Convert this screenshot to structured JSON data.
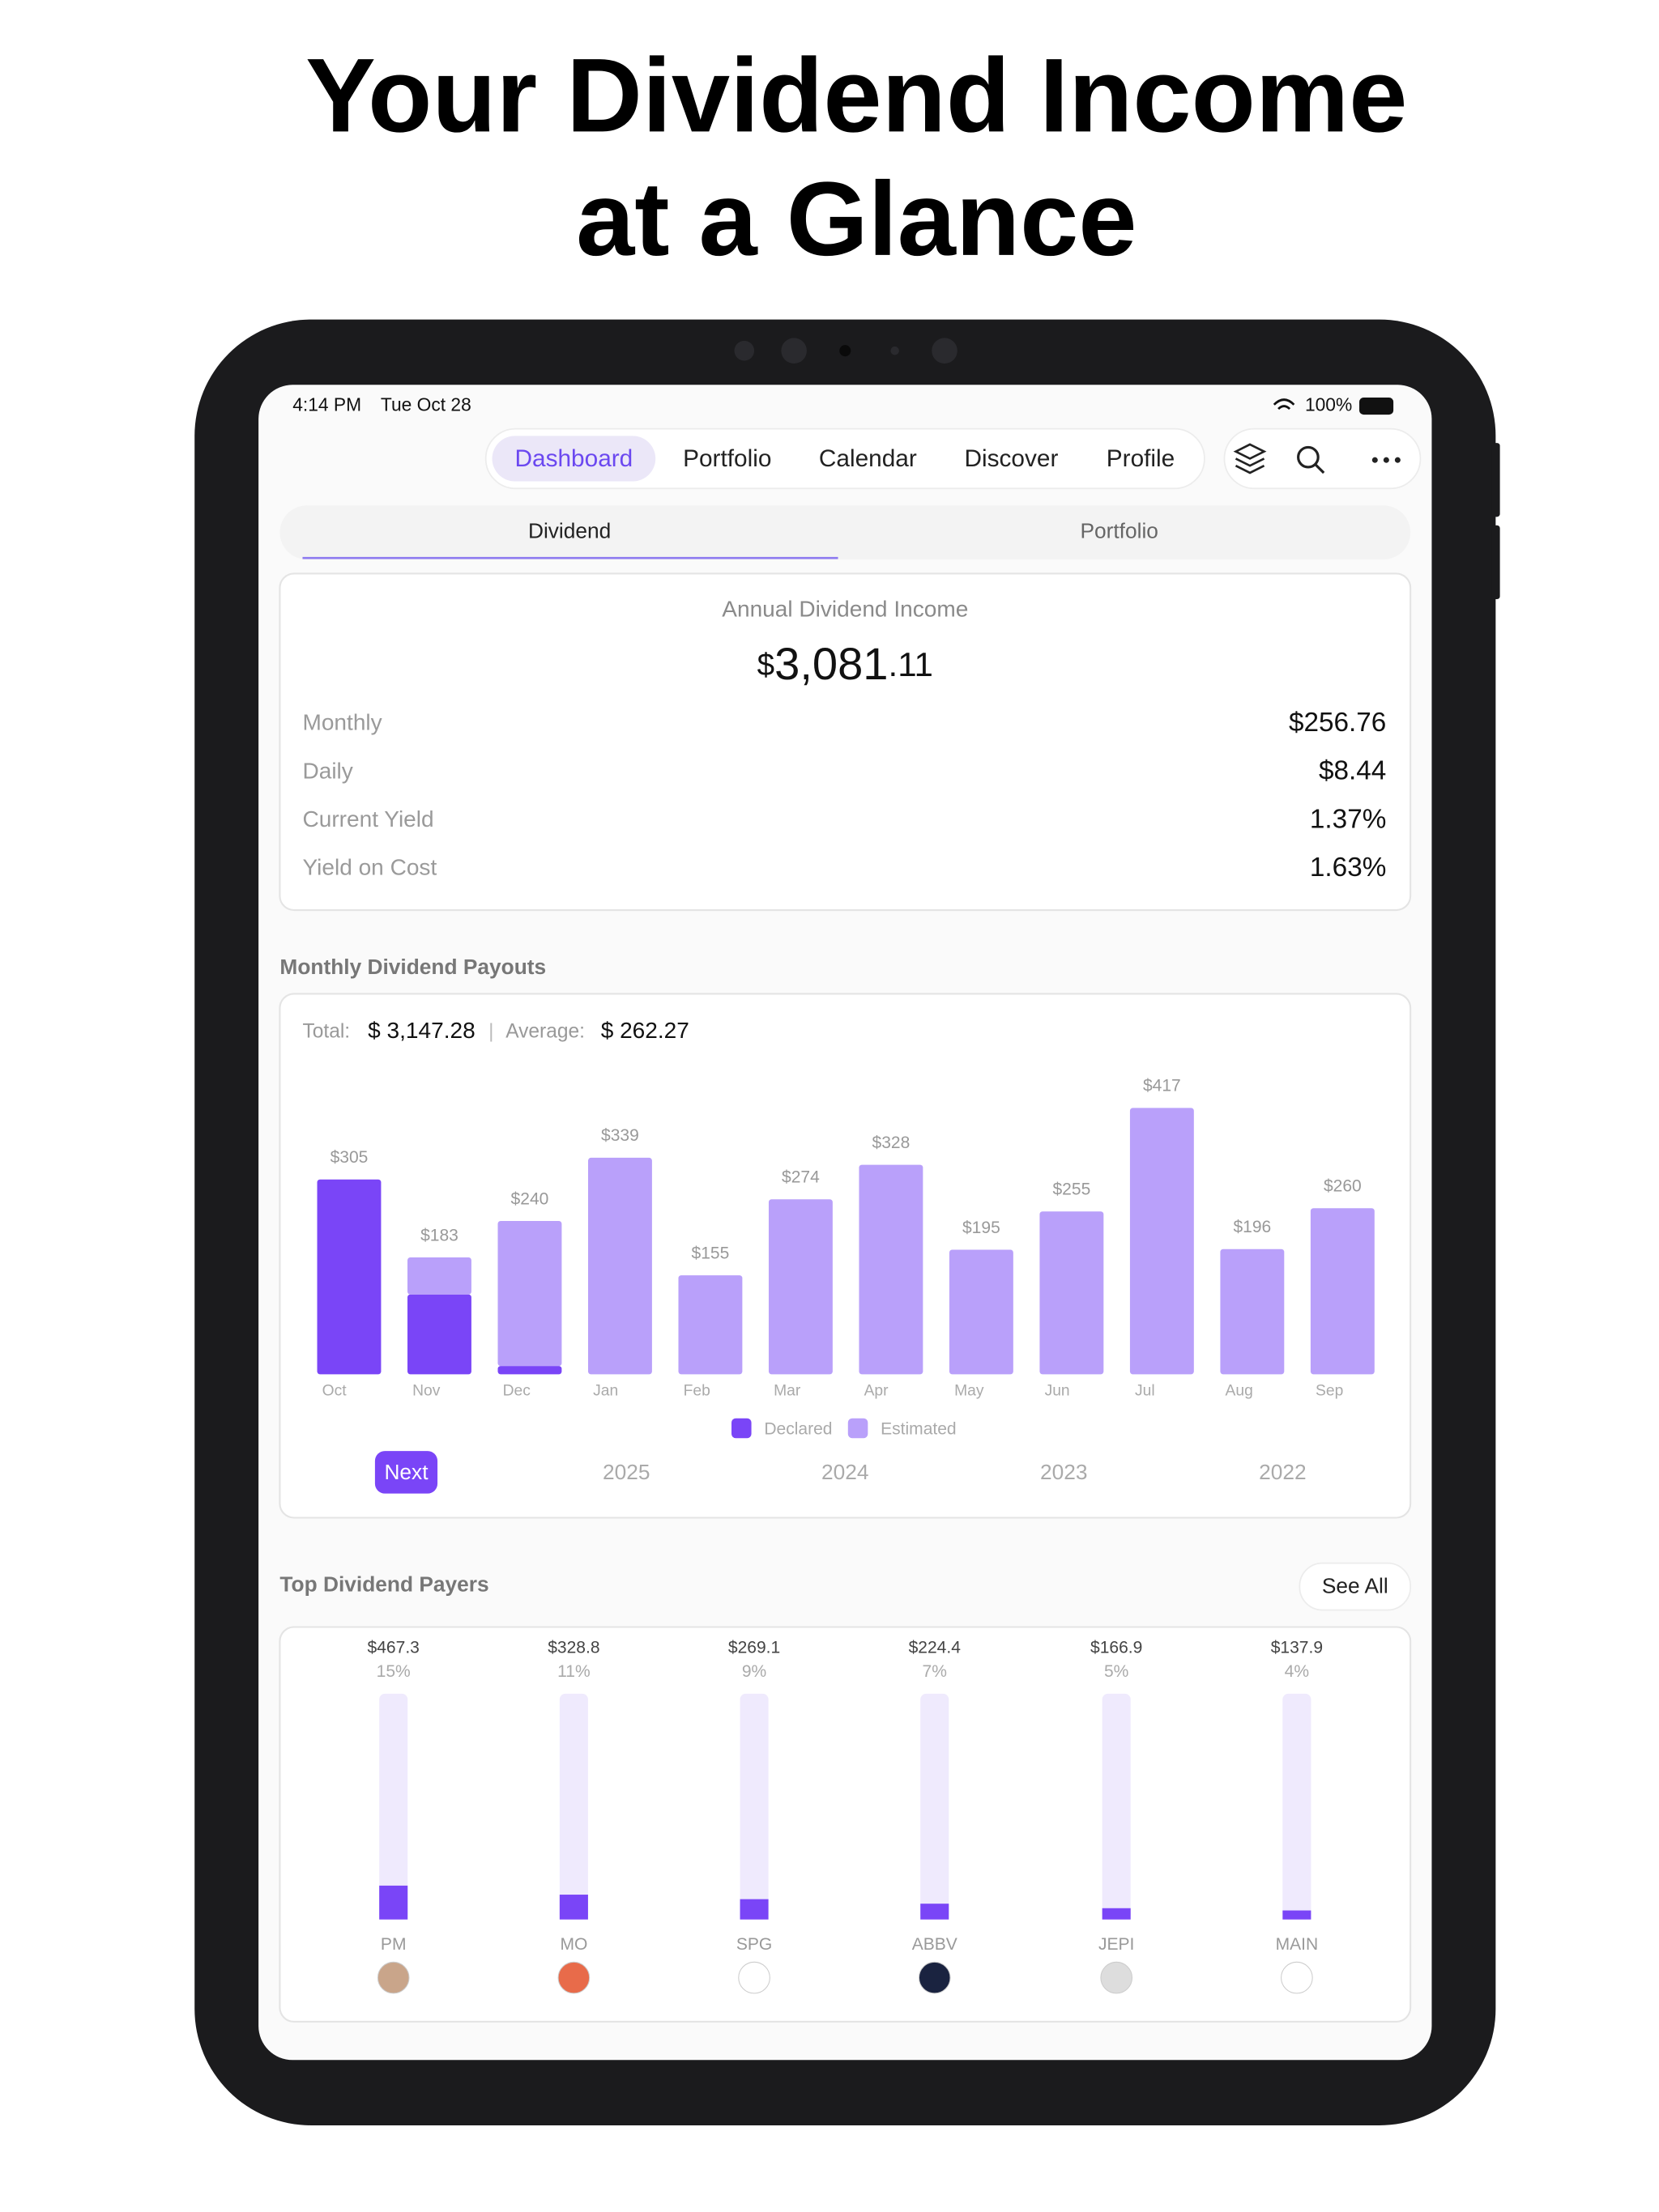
{
  "headline": [
    "Your Dividend Income",
    "at a Glance"
  ],
  "status_bar": {
    "time": "4:14 PM",
    "date": "Tue Oct 28",
    "battery": "100%"
  },
  "nav": {
    "tabs": [
      "Dashboard",
      "Portfolio",
      "Calendar",
      "Discover",
      "Profile"
    ],
    "active": 0
  },
  "subtabs": {
    "tabs": [
      "Dividend",
      "Portfolio"
    ],
    "active": 0
  },
  "summary": {
    "label": "Annual Dividend Income",
    "currency": "$",
    "whole": "3,081",
    "cents": ".11",
    "rows": [
      {
        "label": "Monthly",
        "value": "$256.76"
      },
      {
        "label": "Daily",
        "value": "$8.44"
      },
      {
        "label": "Current Yield",
        "value": "1.37%"
      },
      {
        "label": "Yield on Cost",
        "value": "1.63%"
      }
    ]
  },
  "monthly": {
    "title": "Monthly Dividend Payouts",
    "total_label": "Total:",
    "total": "$ 3,147.28",
    "separator": "|",
    "average_label": "Average:",
    "average": "$ 262.27",
    "periods": [
      "Next",
      "2025",
      "2024",
      "2023",
      "2022"
    ],
    "active_period": 0
  },
  "top_payers": {
    "title": "Top Dividend Payers",
    "see_all": "See All"
  },
  "chart_data": [
    {
      "type": "stacked-bar",
      "categories": [
        "Oct",
        "Nov",
        "Dec",
        "Jan",
        "Feb",
        "Mar",
        "Apr",
        "May",
        "Jun",
        "Jul",
        "Aug",
        "Sep"
      ],
      "series": [
        {
          "name": "Declared",
          "color": "#7a45f7",
          "values": [
            305,
            125,
            13,
            0,
            0,
            0,
            0,
            0,
            0,
            0,
            0,
            0
          ]
        },
        {
          "name": "Estimated",
          "color": "#b9a0fa",
          "values": [
            0,
            58,
            227,
            339,
            155,
            274,
            328,
            195,
            255,
            417,
            196,
            260
          ]
        }
      ],
      "totals": {
        "values": [
          305,
          183,
          240,
          339,
          155,
          274,
          328,
          195,
          255,
          417,
          196,
          260
        ],
        "value_labels": [
          "$305",
          "$183",
          "$240",
          "$339",
          "$155",
          "$274",
          "$328",
          "$195",
          "$255",
          "$417",
          "$196",
          "$260"
        ]
      },
      "ylim": [
        0,
        420
      ]
    },
    {
      "type": "progress-bar",
      "categories": [
        "PM",
        "MO",
        "SPG",
        "ABBV",
        "JEPI",
        "MAIN"
      ],
      "values": [
        15,
        11,
        9,
        7,
        5,
        4
      ],
      "value_labels": [
        "15%",
        "11%",
        "9%",
        "7%",
        "5%",
        "4%"
      ],
      "amounts": [
        467.3,
        328.8,
        269.1,
        224.4,
        166.9,
        137.9
      ],
      "amount_labels": [
        "$467.3",
        "$328.8",
        "$269.1",
        "$224.4",
        "$166.9",
        "$137.9"
      ],
      "color": "#7a45f7",
      "track_color": "#efeafd",
      "ylim": [
        0,
        100
      ]
    }
  ]
}
